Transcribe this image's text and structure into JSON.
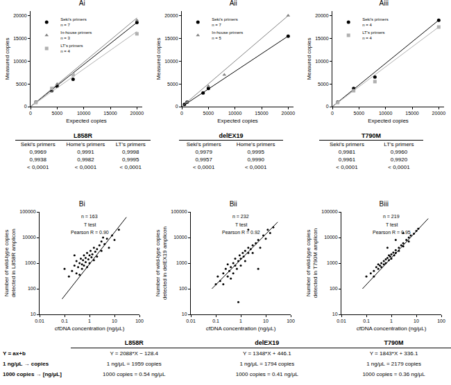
{
  "chart_data": [
    {
      "type": "scatter",
      "title": "Ai",
      "x_label": "Expected copies",
      "y_label": "Measured copies",
      "xlim": [
        0,
        21000
      ],
      "ylim": [
        0,
        21000
      ],
      "xticks": [
        0,
        5000,
        10000,
        15000,
        20000
      ],
      "yticks": [
        0,
        5000,
        10000,
        15000,
        20000
      ],
      "legend": "upper left",
      "series": [
        {
          "name": "Seki's primers",
          "n_label": "n = 7",
          "color": "#000000",
          "marker": "circle",
          "x": [
            1000,
            4000,
            5000,
            8000,
            20000
          ],
          "values": [
            1000,
            3500,
            4500,
            6000,
            18500
          ],
          "fit": {
            "x": [
              0,
              20000
            ],
            "values": [
              0,
              18500
            ]
          }
        },
        {
          "name": "In-house primers",
          "n_label": "n = 3",
          "color": "#808080",
          "marker": "triangle",
          "x": [
            1000,
            5000,
            20000
          ],
          "values": [
            1000,
            5000,
            19000
          ],
          "fit": {
            "x": [
              0,
              20000
            ],
            "values": [
              0,
              19500
            ]
          }
        },
        {
          "name": "LT's primers",
          "n_label": "n = 4",
          "color": "#b0b0b0",
          "marker": "square",
          "x": [
            1000,
            4000,
            8000,
            20000
          ],
          "values": [
            900,
            4000,
            7000,
            16000
          ],
          "fit": {
            "x": [
              0,
              20000
            ],
            "values": [
              0,
              16500
            ]
          }
        }
      ]
    },
    {
      "type": "scatter",
      "title": "Aii",
      "x_label": "Expected copies",
      "y_label": "Measured copies",
      "xlim": [
        0,
        21000
      ],
      "ylim": [
        0,
        21000
      ],
      "xticks": [
        0,
        5000,
        10000,
        15000,
        20000
      ],
      "yticks": [
        0,
        5000,
        10000,
        15000,
        20000
      ],
      "legend": "upper left",
      "series": [
        {
          "name": "Seki's primers",
          "n_label": "n = 7",
          "color": "#000000",
          "marker": "circle",
          "x": [
            500,
            1000,
            4000,
            5000,
            20000
          ],
          "values": [
            500,
            1000,
            3000,
            4000,
            15500
          ],
          "fit": {
            "x": [
              0,
              20000
            ],
            "values": [
              0,
              15500
            ]
          }
        },
        {
          "name": "In-house primers",
          "n_label": "n = 5",
          "color": "#808080",
          "marker": "triangle",
          "x": [
            1000,
            5000,
            8000,
            20000
          ],
          "values": [
            1000,
            4500,
            7000,
            20000
          ],
          "fit": {
            "x": [
              0,
              20000
            ],
            "values": [
              0,
              20000
            ]
          }
        }
      ]
    },
    {
      "type": "scatter",
      "title": "Aiii",
      "x_label": "Expected copies",
      "y_label": "Measured copies",
      "xlim": [
        0,
        21000
      ],
      "ylim": [
        0,
        21000
      ],
      "xticks": [
        0,
        5000,
        10000,
        15000,
        20000
      ],
      "yticks": [
        0,
        5000,
        10000,
        15000,
        20000
      ],
      "legend": "upper left",
      "series": [
        {
          "name": "Seki's primers",
          "n_label": "n = 4",
          "color": "#000000",
          "marker": "circle",
          "x": [
            1000,
            4000,
            8000,
            20000
          ],
          "values": [
            1000,
            4000,
            6500,
            19000
          ],
          "fit": {
            "x": [
              0,
              20000
            ],
            "values": [
              0,
              19000
            ]
          }
        },
        {
          "name": "LT's primers",
          "n_label": "n = 4",
          "color": "#b0b0b0",
          "marker": "square",
          "x": [
            1000,
            4000,
            8000,
            20000
          ],
          "values": [
            900,
            3500,
            5500,
            17500
          ],
          "fit": {
            "x": [
              0,
              20000
            ],
            "values": [
              0,
              17500
            ]
          }
        }
      ]
    },
    {
      "type": "scatter",
      "title": "Bi",
      "x_label": "cfDNA concentration (ng/µL)",
      "y_label": [
        "Number of wild-type copies",
        "detected in L858R amplicon"
      ],
      "log": true,
      "xlim": [
        0.01,
        100
      ],
      "ylim": [
        10,
        100000
      ],
      "xticks": [
        0.01,
        0.1,
        1,
        10,
        100
      ],
      "yticks": [
        10,
        100,
        1000,
        10000,
        100000
      ],
      "annotations": [
        "n = 163",
        "T test",
        "Pearson R = 0.90"
      ],
      "series": [
        {
          "color": "#000000",
          "marker": "circle",
          "x": [
            0.1,
            0.15,
            0.2,
            0.25,
            0.3,
            0.3,
            0.35,
            0.4,
            0.4,
            0.45,
            0.5,
            0.5,
            0.55,
            0.6,
            0.6,
            0.7,
            0.7,
            0.8,
            0.8,
            0.9,
            1,
            1,
            1.1,
            1.2,
            1.3,
            1.5,
            1.5,
            1.7,
            2,
            2,
            2.5,
            3,
            3,
            4,
            5,
            6,
            8,
            10,
            15,
            3.5,
            0.25
          ],
          "values": [
            600,
            300,
            500,
            800,
            400,
            1200,
            700,
            1000,
            350,
            1500,
            900,
            600,
            1300,
            2000,
            800,
            1100,
            1600,
            2500,
            700,
            1400,
            2000,
            1000,
            3000,
            1700,
            2200,
            1300,
            4000,
            2800,
            3500,
            1800,
            5000,
            3000,
            7000,
            5500,
            9000,
            4000,
            12000,
            8000,
            20000,
            10000,
            2000
          ],
          "fit": {
            "x": [
              0.08,
              30
            ],
            "values": [
              40,
              62000
            ]
          }
        }
      ]
    },
    {
      "type": "scatter",
      "title": "Bii",
      "x_label": "cfDNA concentration (ng/µL)",
      "y_label": [
        "Number of wild-type copies",
        "detected in delEX19 amplicon"
      ],
      "log": true,
      "xlim": [
        0.01,
        100
      ],
      "ylim": [
        10,
        100000
      ],
      "xticks": [
        0.01,
        0.1,
        1,
        10,
        100
      ],
      "yticks": [
        10,
        100,
        1000,
        10000,
        100000
      ],
      "annotations": [
        "n = 232",
        "T test",
        "Pearson R = 0.92"
      ],
      "series": [
        {
          "color": "#000000",
          "marker": "circle",
          "x": [
            0.1,
            0.12,
            0.15,
            0.2,
            0.2,
            0.25,
            0.3,
            0.3,
            0.35,
            0.4,
            0.4,
            0.5,
            0.5,
            0.6,
            0.6,
            0.7,
            0.8,
            0.8,
            0.9,
            1,
            1,
            1.2,
            1.3,
            1.5,
            1.5,
            2,
            2,
            2.5,
            3,
            3,
            4,
            5,
            6,
            8,
            10,
            12,
            15,
            20,
            5,
            2
          ],
          "values": [
            150,
            300,
            200,
            400,
            150,
            600,
            300,
            900,
            500,
            700,
            250,
            1000,
            400,
            800,
            1500,
            600,
            1200,
            30,
            2000,
            1500,
            800,
            2500,
            1800,
            3000,
            1200,
            2500,
            4000,
            3500,
            5000,
            2500,
            6000,
            8000,
            4000,
            12000,
            9000,
            20000,
            15000,
            25000,
            600,
            20000
          ],
          "fit": {
            "x": [
              0.07,
              30
            ],
            "values": [
              100,
              40000
            ]
          }
        }
      ]
    },
    {
      "type": "scatter",
      "title": "Biii",
      "x_label": "cfDNA concentration (ng/µL)",
      "y_label": [
        "Number of wild-type copies",
        "detected in T790M amplicon"
      ],
      "log": true,
      "xlim": [
        0.01,
        100
      ],
      "ylim": [
        10,
        100000
      ],
      "xticks": [
        0.01,
        0.1,
        1,
        10,
        100
      ],
      "yticks": [
        10,
        100,
        1000,
        10000,
        100000
      ],
      "annotations": [
        "n = 219",
        "T test",
        "Pearson R = 0.95"
      ],
      "series": [
        {
          "color": "#000000",
          "marker": "circle",
          "x": [
            0.1,
            0.15,
            0.2,
            0.2,
            0.25,
            0.3,
            0.3,
            0.35,
            0.4,
            0.4,
            0.5,
            0.5,
            0.6,
            0.6,
            0.7,
            0.8,
            0.8,
            0.9,
            1,
            1,
            1.2,
            1.3,
            1.5,
            1.5,
            2,
            2,
            2.5,
            3,
            3,
            4,
            5,
            5,
            6,
            8,
            10,
            12,
            0.7,
            1.5,
            3
          ],
          "values": [
            300,
            400,
            500,
            300,
            700,
            600,
            900,
            800,
            1000,
            700,
            1200,
            900,
            1400,
            1000,
            1600,
            1300,
            2000,
            1800,
            2200,
            1500,
            2600,
            2000,
            3200,
            2500,
            4000,
            3000,
            5000,
            6000,
            4500,
            8000,
            10000,
            7000,
            12000,
            14000,
            18000,
            22000,
            4000,
            8000,
            15000
          ],
          "fit": {
            "x": [
              0.07,
              30
            ],
            "values": [
              100,
              55000
            ]
          }
        }
      ]
    }
  ],
  "tables": [
    {
      "title": "L858R",
      "header": [
        "Seki's primers",
        "Home's primers",
        "LT's primers"
      ],
      "rows": [
        [
          "0,9969",
          "0,9991",
          "0,9998"
        ],
        [
          "0,9938",
          "0,9982",
          "0,9995"
        ],
        [
          "< 0,0001",
          "< 0,0001",
          "< 0,0001"
        ]
      ]
    },
    {
      "title": "delEX19",
      "header": [
        "Seki's primers",
        "Home's primers"
      ],
      "rows": [
        [
          "0,9979",
          "0,9995"
        ],
        [
          "0,9957",
          "0,9990"
        ],
        [
          "< 0,0001",
          "< 0,0001"
        ]
      ]
    },
    {
      "title": "T790M",
      "header": [
        "Seki's primers",
        "LT's primers"
      ],
      "rows": [
        [
          "0,9981",
          "0,9960"
        ],
        [
          "0,9961",
          "0,9920"
        ],
        [
          "< 0,0001",
          "< 0,0001"
        ]
      ]
    }
  ],
  "equations": {
    "row_labels": [
      "Y = ax+b",
      "1 ng/μL → copies",
      "1000 copies → [ng/μL]"
    ],
    "columns": [
      {
        "title": "L858R",
        "cells": [
          "Y = 2088*X − 128.4",
          "1 ng/μL = 1959 copies",
          "1000 copies = 0.54 ng/μL"
        ]
      },
      {
        "title": "delEX19",
        "cells": [
          "Y = 1348*X + 446.1",
          "1 ng/μL = 1794 copies",
          "1000 copies = 0.41 ng/μL"
        ]
      },
      {
        "title": "T790M",
        "cells": [
          "Y = 1843*X + 336.1",
          "1 ng/μL = 2179 copies",
          "1000 copies = 0.36 ng/μL"
        ]
      }
    ]
  }
}
